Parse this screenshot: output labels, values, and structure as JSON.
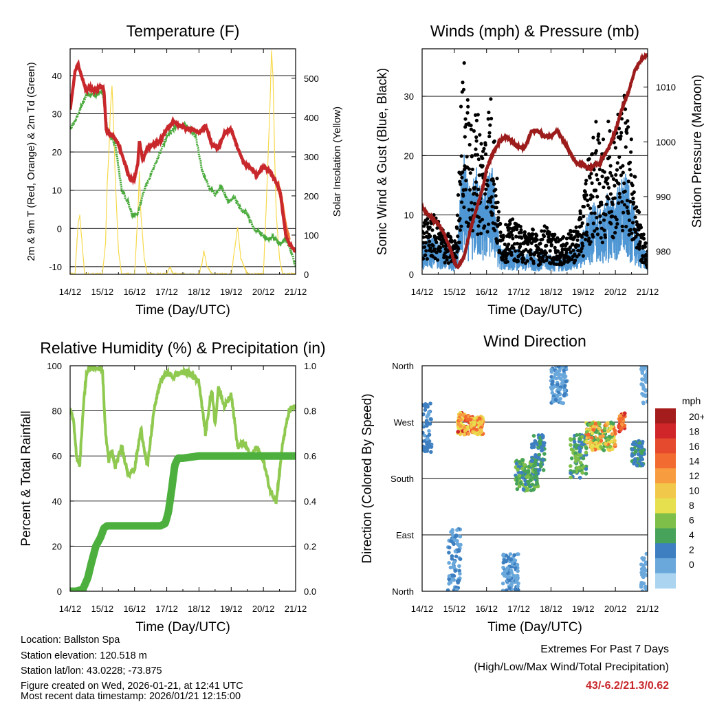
{
  "chart_data": [
    {
      "type": "line",
      "title": "Temperature (F)",
      "xlabel": "Time (Day/UTC)",
      "ylabel_left": "2m & 9m T (Red, Orange) & 2m Td (Green)",
      "ylabel_right": "Solar Insolation (Yellow)",
      "categories": [
        "14/12",
        "15/12",
        "16/12",
        "17/12",
        "18/12",
        "19/12",
        "20/12",
        "21/12"
      ],
      "ylim": [
        -12,
        47
      ],
      "yticks": [
        -10,
        0,
        10,
        20,
        30,
        40
      ],
      "ylim_right": [
        0,
        575
      ],
      "yticks_right": [
        0,
        100,
        200,
        300,
        400,
        500
      ],
      "series": [
        {
          "name": "2m Temperature",
          "color": "#c8282c",
          "x": [
            0,
            0.05,
            0.15,
            0.25,
            0.35,
            0.5,
            0.6,
            0.75,
            0.9,
            1.0,
            1.05,
            1.12,
            1.2,
            1.35,
            1.5,
            1.7,
            1.85,
            2.0,
            2.1,
            2.15,
            2.25,
            2.4,
            2.6,
            2.8,
            3.0,
            3.2,
            3.4,
            3.6,
            3.8,
            4.0,
            4.2,
            4.4,
            4.6,
            4.8,
            5.0,
            5.2,
            5.4,
            5.6,
            5.8,
            6.0,
            6.2,
            6.4,
            6.5,
            6.55,
            6.6,
            6.7,
            6.8,
            6.9,
            7.0
          ],
          "values": [
            31,
            34,
            41,
            43,
            40,
            36,
            37,
            36,
            37,
            37,
            36,
            26,
            25,
            24,
            22,
            17,
            13,
            13,
            17,
            23,
            18,
            21,
            22,
            23,
            26,
            28,
            27,
            26,
            26,
            25,
            27,
            22,
            21,
            25,
            26,
            21,
            17,
            16,
            14,
            16,
            15,
            12,
            10,
            8,
            4,
            -2,
            -4,
            -5,
            -6
          ]
        },
        {
          "name": "9m Temperature",
          "color": "#f07030",
          "x": [
            6.4,
            6.5,
            6.55,
            6.6,
            6.7,
            6.8
          ],
          "values": [
            12,
            10,
            8,
            5,
            0,
            -3
          ]
        },
        {
          "name": "2m Dewpoint",
          "color": "#4aaa3c",
          "x": [
            0,
            0.2,
            0.5,
            0.8,
            1.0,
            1.05,
            1.15,
            1.4,
            1.6,
            1.8,
            1.95,
            2.1,
            2.3,
            2.6,
            3.0,
            3.3,
            3.6,
            3.9,
            4.1,
            4.3,
            4.5,
            4.7,
            4.9,
            5.1,
            5.3,
            5.5,
            5.7,
            5.9,
            6.1,
            6.3,
            6.5,
            6.7,
            6.9,
            7.0
          ],
          "values": [
            26,
            29,
            35,
            35,
            36,
            33,
            26,
            22,
            10,
            7,
            3,
            4,
            10,
            16,
            24,
            27,
            27,
            24,
            15,
            11,
            9,
            11,
            7,
            8,
            5,
            4,
            0,
            -1,
            -3,
            -2,
            -4,
            -3,
            -7,
            -10
          ]
        },
        {
          "name": "Solar Insolation",
          "color": "#f7d94c",
          "axis": "right",
          "x": [
            0,
            0.15,
            0.25,
            0.3,
            0.35,
            0.45,
            0.55,
            1.0,
            1.1,
            1.15,
            1.2,
            1.25,
            1.3,
            1.35,
            1.4,
            1.5,
            1.6,
            2.0,
            2.1,
            2.15,
            2.2,
            2.3,
            2.4,
            3.0,
            3.1,
            3.2,
            4.0,
            4.1,
            4.15,
            4.25,
            4.4,
            5.0,
            5.1,
            5.2,
            5.3,
            5.5,
            6.0,
            6.1,
            6.2,
            6.25,
            6.3,
            6.35,
            6.4,
            6.5,
            6.6,
            7.0
          ],
          "values": [
            0,
            0,
            130,
            150,
            100,
            0,
            0,
            0,
            80,
            230,
            300,
            420,
            480,
            380,
            250,
            60,
            0,
            0,
            150,
            260,
            150,
            40,
            0,
            0,
            20,
            0,
            0,
            30,
            60,
            20,
            0,
            0,
            60,
            120,
            40,
            0,
            0,
            200,
            420,
            570,
            500,
            300,
            150,
            40,
            0,
            0
          ]
        }
      ]
    },
    {
      "type": "scatter",
      "title": "Winds (mph) & Pressure (mb)",
      "xlabel": "Time (Day/UTC)",
      "ylabel_left": "Sonic Wind & Gust (Blue, Black)",
      "ylabel_right": "Station Pressure (Maroon)",
      "categories": [
        "14/12",
        "15/12",
        "16/12",
        "17/12",
        "18/12",
        "19/12",
        "20/12",
        "21/12"
      ],
      "ylim": [
        0,
        38
      ],
      "yticks": [
        0,
        10,
        20,
        30
      ],
      "ylim_right": [
        975.8,
        1017
      ],
      "yticks_right": [
        980,
        990,
        1000,
        1010
      ],
      "wind_envelope": {
        "x": [
          0,
          0.3,
          0.6,
          0.9,
          1.0,
          1.1,
          1.2,
          1.3,
          1.4,
          1.5,
          1.6,
          1.7,
          1.8,
          1.9,
          2.0,
          2.1,
          2.2,
          2.3,
          2.4,
          2.5,
          2.6,
          2.8,
          3.0,
          3.2,
          3.4,
          3.6,
          3.8,
          4.0,
          4.2,
          4.4,
          4.6,
          4.8,
          5.0,
          5.1,
          5.2,
          5.3,
          5.4,
          5.5,
          5.6,
          5.7,
          5.8,
          5.9,
          6.0,
          6.1,
          6.2,
          6.3,
          6.4,
          6.5,
          6.6,
          6.7,
          6.8,
          6.9,
          7.0
        ],
        "values": [
          5,
          6,
          5,
          4,
          3,
          5,
          14,
          19,
          15,
          13,
          15,
          17,
          14,
          13,
          15,
          16,
          17,
          10,
          5,
          4,
          4,
          4,
          4,
          3,
          4,
          3,
          4,
          3,
          3,
          3,
          4,
          4,
          7,
          9,
          10,
          11,
          12,
          10,
          10,
          12,
          13,
          12,
          13,
          14,
          15,
          16,
          14,
          12,
          10,
          7,
          5,
          4,
          3
        ]
      },
      "gust_envelope": {
        "x": [
          0,
          0.3,
          0.6,
          0.9,
          1.0,
          1.1,
          1.2,
          1.3,
          1.4,
          1.5,
          1.6,
          1.7,
          1.8,
          1.9,
          2.0,
          2.1,
          2.2,
          2.3,
          2.4,
          2.5,
          2.6,
          2.8,
          3.0,
          3.2,
          3.4,
          3.6,
          3.8,
          4.0,
          4.2,
          4.4,
          4.6,
          4.8,
          5.0,
          5.1,
          5.2,
          5.3,
          5.4,
          5.5,
          5.6,
          5.7,
          5.8,
          5.9,
          6.0,
          6.1,
          6.2,
          6.3,
          6.4,
          6.5,
          6.6,
          6.7,
          6.8,
          6.9,
          7.0
        ],
        "values": [
          9,
          10,
          8,
          6,
          5,
          10,
          28,
          35,
          30,
          24,
          26,
          28,
          24,
          23,
          26,
          30,
          28,
          18,
          9,
          8,
          8,
          9,
          8,
          7,
          8,
          6,
          8,
          7,
          6,
          6,
          7,
          8,
          12,
          18,
          20,
          22,
          25,
          22,
          21,
          24,
          26,
          24,
          26,
          27,
          29,
          30,
          26,
          22,
          18,
          12,
          8,
          6,
          4
        ]
      },
      "series": [
        {
          "name": "Station Pressure",
          "color": "#9c1c1c",
          "axis": "right",
          "x": [
            0,
            0.15,
            0.3,
            0.5,
            0.7,
            0.9,
            1.0,
            1.1,
            1.2,
            1.3,
            1.5,
            1.7,
            1.9,
            2.0,
            2.2,
            2.4,
            2.6,
            2.8,
            3.0,
            3.2,
            3.4,
            3.6,
            3.8,
            4.0,
            4.2,
            4.4,
            4.6,
            4.8,
            5.0,
            5.2,
            5.4,
            5.5,
            5.6,
            5.8,
            6.0,
            6.2,
            6.4,
            6.6,
            6.8,
            7.0
          ],
          "values": [
            988,
            987,
            986,
            985,
            983,
            980,
            978,
            977,
            978,
            979,
            984,
            988,
            992,
            995,
            998,
            1000,
            1001,
            1000,
            999,
            999,
            1002,
            1002,
            1001,
            1001,
            1002,
            1000,
            998,
            996,
            996,
            995,
            996,
            996,
            997,
            999,
            1002,
            1006,
            1009,
            1013,
            1015,
            1016
          ]
        }
      ]
    },
    {
      "type": "line",
      "title": "Relative Humidity (%) & Precipitation (in)",
      "xlabel": "Time (Day/UTC)",
      "ylabel_left": "Percent & Total Rainfall",
      "categories": [
        "14/12",
        "15/12",
        "16/12",
        "17/12",
        "18/12",
        "19/12",
        "20/12",
        "21/12"
      ],
      "ylim": [
        0,
        100
      ],
      "yticks": [
        0,
        20,
        40,
        60,
        80,
        100
      ],
      "ylim_right": [
        0,
        1.0
      ],
      "yticks_right": [
        "0.0",
        "0.2",
        "0.4",
        "0.6",
        "0.8",
        "1.0"
      ],
      "series": [
        {
          "name": "Relative Humidity",
          "color": "#8fc950",
          "x": [
            0,
            0.1,
            0.2,
            0.3,
            0.4,
            0.5,
            0.6,
            0.7,
            0.8,
            1.0,
            1.1,
            1.2,
            1.3,
            1.4,
            1.6,
            1.8,
            2.0,
            2.2,
            2.4,
            2.6,
            2.8,
            3.0,
            3.2,
            3.4,
            3.6,
            3.8,
            4.0,
            4.2,
            4.3,
            4.4,
            4.5,
            4.6,
            4.8,
            5.0,
            5.2,
            5.4,
            5.6,
            5.8,
            6.0,
            6.2,
            6.4,
            6.6,
            6.8,
            7.0
          ],
          "values": [
            80,
            76,
            60,
            56,
            80,
            96,
            99,
            99,
            99,
            99,
            70,
            58,
            62,
            55,
            64,
            52,
            54,
            72,
            55,
            80,
            93,
            97,
            95,
            97,
            97,
            96,
            93,
            70,
            80,
            90,
            74,
            90,
            82,
            88,
            64,
            66,
            60,
            64,
            58,
            45,
            40,
            66,
            80,
            82
          ]
        },
        {
          "name": "Total Rainfall",
          "color": "#4db03e",
          "axis": "right",
          "x": [
            0,
            0.2,
            0.4,
            0.55,
            0.65,
            0.8,
            0.95,
            1.05,
            1.15,
            1.3,
            1.5,
            2.0,
            2.5,
            2.8,
            2.95,
            3.05,
            3.15,
            3.25,
            3.35,
            3.5,
            4.0,
            5.0,
            6.0,
            7.0
          ],
          "values": [
            0,
            0,
            0.01,
            0.06,
            0.12,
            0.2,
            0.24,
            0.28,
            0.29,
            0.29,
            0.29,
            0.29,
            0.29,
            0.29,
            0.3,
            0.35,
            0.45,
            0.56,
            0.59,
            0.59,
            0.6,
            0.6,
            0.6,
            0.6
          ]
        }
      ]
    },
    {
      "type": "scatter",
      "title": "Wind Direction",
      "xlabel": "Time (Day/UTC)",
      "ylabel_left": "Direction (Colored By Speed)",
      "categories": [
        "14/12",
        "15/12",
        "16/12",
        "17/12",
        "18/12",
        "19/12",
        "20/12",
        "21/12"
      ],
      "yticks": [
        "North",
        "East",
        "South",
        "West",
        "North"
      ],
      "legend_title": "mph",
      "legend_labels": [
        "20+",
        "18",
        "16",
        "14",
        "12",
        "10",
        "8",
        "6",
        "4",
        "2",
        "0"
      ],
      "legend_colors": [
        "#a51c1c",
        "#d0262a",
        "#e64a2e",
        "#f26b30",
        "#f79d40",
        "#f2c84a",
        "#e7e04e",
        "#7dbf48",
        "#48a35a",
        "#3d7fc0",
        "#6aa8dc",
        "#aad4f0"
      ],
      "clusters": [
        {
          "x": [
            0,
            0.3
          ],
          "dir": [
            220,
            300
          ],
          "speed": [
            1,
            4
          ]
        },
        {
          "x": [
            0.8,
            1.2
          ],
          "dir": [
            0,
            100
          ],
          "speed": [
            1,
            3
          ]
        },
        {
          "x": [
            1.1,
            1.5
          ],
          "dir": [
            250,
            285
          ],
          "speed": [
            8,
            20
          ]
        },
        {
          "x": [
            1.5,
            1.9
          ],
          "dir": [
            250,
            280
          ],
          "speed": [
            8,
            18
          ]
        },
        {
          "x": [
            2.5,
            3.0
          ],
          "dir": [
            0,
            60
          ],
          "speed": [
            0,
            3
          ]
        },
        {
          "x": [
            2.9,
            3.6
          ],
          "dir": [
            160,
            210
          ],
          "speed": [
            3,
            8
          ]
        },
        {
          "x": [
            3.4,
            3.8
          ],
          "dir": [
            190,
            250
          ],
          "speed": [
            2,
            5
          ]
        },
        {
          "x": [
            4.0,
            4.5
          ],
          "dir": [
            300,
            360
          ],
          "speed": [
            0,
            3
          ]
        },
        {
          "x": [
            4.6,
            5.1
          ],
          "dir": [
            180,
            250
          ],
          "speed": [
            3,
            8
          ]
        },
        {
          "x": [
            5.1,
            6.0
          ],
          "dir": [
            225,
            270
          ],
          "speed": [
            4,
            16
          ]
        },
        {
          "x": [
            6.1,
            6.3
          ],
          "dir": [
            255,
            285
          ],
          "speed": [
            12,
            20
          ]
        },
        {
          "x": [
            6.5,
            6.9
          ],
          "dir": [
            200,
            240
          ],
          "speed": [
            2,
            5
          ]
        },
        {
          "x": [
            6.8,
            7.0
          ],
          "dir": [
            0,
            60
          ],
          "speed": [
            0,
            2
          ]
        },
        {
          "x": [
            6.8,
            7.0
          ],
          "dir": [
            300,
            360
          ],
          "speed": [
            0,
            2
          ]
        }
      ]
    }
  ],
  "info": {
    "location": "Location: Ballston Spa",
    "elevation": "Station elevation: 120.518 m",
    "latlon": "Station lat/lon: 43.0228; -73.875",
    "created": "Figure created on Wed, 2026-01-21, at 12:41 UTC",
    "recent": "Most recent data timestamp: 2026/01/21 12:15:00"
  },
  "extremes": {
    "title": "Extremes For Past 7 Days",
    "subtitle": "(High/Low/Max Wind/Total Precipitation)",
    "value": "43/-6.2/21.3/0.62"
  }
}
